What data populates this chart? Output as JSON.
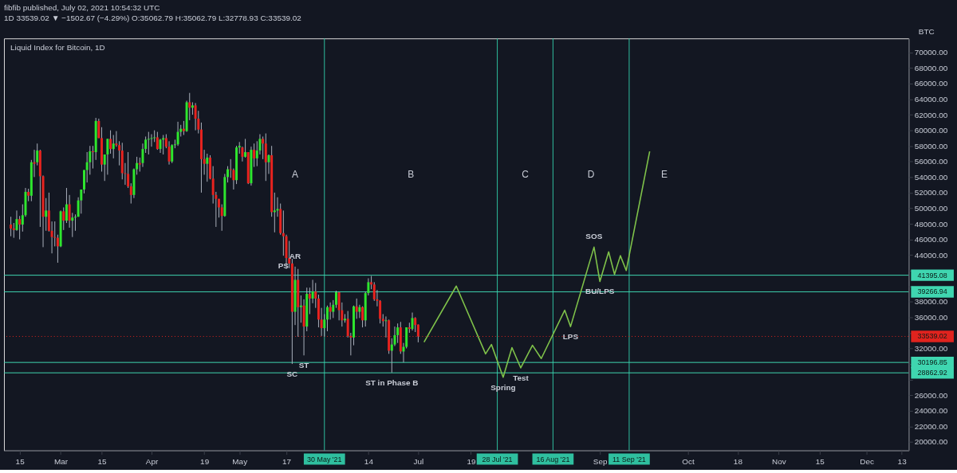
{
  "chart_data": {
    "type": "candlestick",
    "title": "fibfib published, July 02, 2021 10:54:32 UTC",
    "subtitle": "1D 33539.02 ▼ −1502.67 (−4.29%) O:35062.79 H:35062.79 L:32778.93 C:33539.02",
    "ylabel": "BTC",
    "annotations": [
      "Liquid Index for Bitcoin, 1D",
      "A",
      "B",
      "C",
      "D",
      "E",
      {
        "text": "PS",
        "x": "2021-05-16",
        "y": 43900
      },
      {
        "text": "AR",
        "x": "2021-05-20",
        "y": 42500
      },
      {
        "text": "SC",
        "x": "2021-05-19",
        "y": 30000
      },
      {
        "text": "ST",
        "x": "2021-05-23",
        "y": 31100
      },
      {
        "text": "ST in Phase B",
        "x": "2021-06-22",
        "y": 28900
      },
      {
        "text": "Spring",
        "x": "2021-07-30",
        "y": 28300
      },
      {
        "text": "Test",
        "x": "2021-08-05",
        "y": 29500
      },
      {
        "text": "LPS",
        "x": "2021-08-22",
        "y": 34800
      },
      {
        "text": "SOS",
        "x": "2021-08-30",
        "y": 45000
      },
      {
        "text": "BU/LPS",
        "x": "2021-09-01",
        "y": 40600
      }
    ],
    "x": [
      "2021-02-12",
      "2021-02-13",
      "2021-02-14",
      "2021-02-15",
      "2021-02-16",
      "2021-02-17",
      "2021-02-18",
      "2021-02-19",
      "2021-02-20",
      "2021-02-21",
      "2021-02-22",
      "2021-02-23",
      "2021-02-24",
      "2021-02-25",
      "2021-02-26",
      "2021-02-27",
      "2021-02-28",
      "2021-03-01",
      "2021-03-02",
      "2021-03-03",
      "2021-03-04",
      "2021-03-05",
      "2021-03-06",
      "2021-03-07",
      "2021-03-08",
      "2021-03-09",
      "2021-03-10",
      "2021-03-11",
      "2021-03-12",
      "2021-03-13",
      "2021-03-14",
      "2021-03-15",
      "2021-03-16",
      "2021-03-17",
      "2021-03-18",
      "2021-03-19",
      "2021-03-20",
      "2021-03-21",
      "2021-03-22",
      "2021-03-23",
      "2021-03-24",
      "2021-03-25",
      "2021-03-26",
      "2021-03-27",
      "2021-03-28",
      "2021-03-29",
      "2021-03-30",
      "2021-03-31",
      "2021-04-01",
      "2021-04-02",
      "2021-04-03",
      "2021-04-04",
      "2021-04-05",
      "2021-04-06",
      "2021-04-07",
      "2021-04-08",
      "2021-04-09",
      "2021-04-10",
      "2021-04-11",
      "2021-04-12",
      "2021-04-13",
      "2021-04-14",
      "2021-04-15",
      "2021-04-16",
      "2021-04-17",
      "2021-04-18",
      "2021-04-19",
      "2021-04-20",
      "2021-04-21",
      "2021-04-22",
      "2021-04-23",
      "2021-04-24",
      "2021-04-25",
      "2021-04-26",
      "2021-04-27",
      "2021-04-28",
      "2021-04-29",
      "2021-04-30",
      "2021-05-01",
      "2021-05-02",
      "2021-05-03",
      "2021-05-04",
      "2021-05-05",
      "2021-05-06",
      "2021-05-07",
      "2021-05-08",
      "2021-05-09",
      "2021-05-10",
      "2021-05-11",
      "2021-05-12",
      "2021-05-13",
      "2021-05-14",
      "2021-05-15",
      "2021-05-16",
      "2021-05-17",
      "2021-05-18",
      "2021-05-19",
      "2021-05-20",
      "2021-05-21",
      "2021-05-22",
      "2021-05-23",
      "2021-05-24",
      "2021-05-25",
      "2021-05-26",
      "2021-05-27",
      "2021-05-28",
      "2021-05-29",
      "2021-05-30",
      "2021-05-31",
      "2021-06-01",
      "2021-06-02",
      "2021-06-03",
      "2021-06-04",
      "2021-06-05",
      "2021-06-06",
      "2021-06-07",
      "2021-06-08",
      "2021-06-09",
      "2021-06-10",
      "2021-06-11",
      "2021-06-12",
      "2021-06-13",
      "2021-06-14",
      "2021-06-15",
      "2021-06-16",
      "2021-06-17",
      "2021-06-18",
      "2021-06-19",
      "2021-06-20",
      "2021-06-21",
      "2021-06-22",
      "2021-06-23",
      "2021-06-24",
      "2021-06-25",
      "2021-06-26",
      "2021-06-27",
      "2021-06-28",
      "2021-06-29",
      "2021-06-30",
      "2021-07-01"
    ],
    "ohlc": [
      [
        47900,
        48900,
        46400,
        47400
      ],
      [
        47400,
        48100,
        46200,
        47200
      ],
      [
        47200,
        49700,
        47100,
        48600
      ],
      [
        48600,
        49000,
        46000,
        47900
      ],
      [
        47900,
        50500,
        47000,
        49100
      ],
      [
        49100,
        52600,
        48900,
        52100
      ],
      [
        52100,
        52500,
        50900,
        51600
      ],
      [
        51600,
        56200,
        50900,
        55900
      ],
      [
        55900,
        57500,
        54000,
        55700
      ],
      [
        55900,
        58300,
        55500,
        57400
      ],
      [
        57400,
        57500,
        47600,
        54100
      ],
      [
        54100,
        54200,
        45000,
        48900
      ],
      [
        48900,
        51300,
        47100,
        49700
      ],
      [
        49700,
        52000,
        47000,
        47100
      ],
      [
        47100,
        48300,
        44200,
        46300
      ],
      [
        46300,
        48300,
        45100,
        46200
      ],
      [
        46200,
        46600,
        43000,
        45100
      ],
      [
        45100,
        49700,
        45000,
        49600
      ],
      [
        49600,
        50100,
        47200,
        48400
      ],
      [
        48400,
        52600,
        48100,
        50500
      ],
      [
        50500,
        51700,
        47500,
        48400
      ],
      [
        48400,
        49400,
        46300,
        48800
      ],
      [
        48800,
        49200,
        47100,
        48900
      ],
      [
        48900,
        51400,
        48900,
        51000
      ],
      [
        51000,
        52400,
        49300,
        52400
      ],
      [
        52400,
        54900,
        51900,
        54900
      ],
      [
        54900,
        57200,
        53300,
        55900
      ],
      [
        55900,
        58000,
        54300,
        57300
      ],
      [
        57300,
        58000,
        55100,
        57200
      ],
      [
        57200,
        61600,
        56200,
        61200
      ],
      [
        61200,
        61500,
        59000,
        59000
      ],
      [
        59000,
        60400,
        54700,
        55600
      ],
      [
        55600,
        56900,
        53500,
        56900
      ],
      [
        56900,
        58900,
        54300,
        58900
      ],
      [
        58900,
        60000,
        57000,
        57600
      ],
      [
        57600,
        59400,
        56400,
        58300
      ],
      [
        58300,
        59900,
        57900,
        58100
      ],
      [
        58100,
        58600,
        55500,
        57400
      ],
      [
        57400,
        58400,
        53700,
        54500
      ],
      [
        54500,
        55800,
        53000,
        54400
      ],
      [
        54400,
        57200,
        52600,
        52800
      ],
      [
        52800,
        53200,
        50600,
        51700
      ],
      [
        51700,
        55100,
        51300,
        55000
      ],
      [
        55000,
        56600,
        54300,
        55800
      ],
      [
        55800,
        56500,
        54700,
        55600
      ],
      [
        55800,
        58300,
        55300,
        57600
      ],
      [
        57600,
        59200,
        57100,
        58800
      ],
      [
        58800,
        59800,
        56900,
        58900
      ],
      [
        58900,
        59500,
        57900,
        59000
      ],
      [
        59000,
        60000,
        58500,
        59100
      ],
      [
        59100,
        59800,
        57500,
        57600
      ],
      [
        57600,
        58900,
        57100,
        58800
      ],
      [
        58800,
        59400,
        56900,
        59000
      ],
      [
        59000,
        59500,
        57700,
        57900
      ],
      [
        57900,
        58600,
        55600,
        56000
      ],
      [
        56000,
        58200,
        55800,
        58100
      ],
      [
        58100,
        58800,
        57700,
        58200
      ],
      [
        58200,
        61100,
        58000,
        59800
      ],
      [
        59800,
        60700,
        59200,
        60200
      ],
      [
        60200,
        61200,
        59400,
        59900
      ],
      [
        59900,
        63800,
        59800,
        63600
      ],
      [
        63600,
        64800,
        61300,
        62900
      ],
      [
        62900,
        63600,
        62000,
        63200
      ],
      [
        63200,
        63500,
        60000,
        61500
      ],
      [
        61500,
        62500,
        59600,
        60100
      ],
      [
        60100,
        61000,
        52000,
        56300
      ],
      [
        56300,
        57500,
        54300,
        55700
      ],
      [
        55700,
        57000,
        53400,
        56500
      ],
      [
        56500,
        56800,
        53700,
        53800
      ],
      [
        53800,
        55400,
        50600,
        51700
      ],
      [
        51700,
        52100,
        47600,
        51200
      ],
      [
        51200,
        51200,
        48800,
        50100
      ],
      [
        50100,
        50500,
        47100,
        49000
      ],
      [
        49000,
        54400,
        48900,
        54000
      ],
      [
        54000,
        55400,
        53300,
        55000
      ],
      [
        55000,
        56300,
        53900,
        54900
      ],
      [
        54900,
        55100,
        52400,
        53600
      ],
      [
        53600,
        58000,
        53100,
        57800
      ],
      [
        57800,
        58500,
        57000,
        58000
      ],
      [
        57800,
        57900,
        56000,
        56600
      ],
      [
        56600,
        58900,
        56500,
        57200
      ],
      [
        57200,
        57200,
        53100,
        53200
      ],
      [
        53200,
        57900,
        52900,
        57500
      ],
      [
        57500,
        58300,
        55300,
        56400
      ],
      [
        56400,
        58600,
        55400,
        57400
      ],
      [
        57400,
        59500,
        56900,
        58900
      ],
      [
        58900,
        59200,
        56300,
        58300
      ],
      [
        58300,
        59600,
        53500,
        55900
      ],
      [
        55900,
        56900,
        54400,
        56800
      ],
      [
        56800,
        58000,
        48900,
        49500
      ],
      [
        49500,
        52000,
        46900,
        49700
      ],
      [
        49700,
        51400,
        48900,
        49900
      ],
      [
        49900,
        50600,
        46600,
        46800
      ],
      [
        46800,
        49700,
        43900,
        46400
      ],
      [
        46400,
        46600,
        42200,
        43600
      ],
      [
        43600,
        45800,
        42300,
        42900
      ],
      [
        42900,
        43500,
        30000,
        36700
      ],
      [
        36700,
        42500,
        35000,
        40800
      ],
      [
        40800,
        42200,
        33500,
        37300
      ],
      [
        37300,
        38800,
        35300,
        37500
      ],
      [
        37500,
        38300,
        31100,
        34800
      ],
      [
        34800,
        39800,
        34200,
        39000
      ],
      [
        39000,
        39800,
        36400,
        38400
      ],
      [
        38400,
        40800,
        37800,
        39300
      ],
      [
        39300,
        40400,
        37200,
        38400
      ],
      [
        38400,
        38900,
        34700,
        35700
      ],
      [
        35700,
        37200,
        33600,
        34600
      ],
      [
        34600,
        36400,
        33500,
        35700
      ],
      [
        35700,
        37500,
        34200,
        37300
      ],
      [
        37300,
        37900,
        35700,
        36700
      ],
      [
        36700,
        38200,
        35900,
        37600
      ],
      [
        37600,
        39400,
        37200,
        39200
      ],
      [
        39200,
        39200,
        35600,
        36900
      ],
      [
        36900,
        37900,
        34800,
        35600
      ],
      [
        35600,
        36400,
        35300,
        35800
      ],
      [
        35800,
        36800,
        33400,
        33600
      ],
      [
        33600,
        34000,
        31100,
        33400
      ],
      [
        33400,
        37500,
        32400,
        37400
      ],
      [
        37400,
        38400,
        35800,
        36700
      ],
      [
        36700,
        37600,
        35900,
        37300
      ],
      [
        37300,
        37400,
        34700,
        35600
      ],
      [
        35600,
        39300,
        34800,
        39100
      ],
      [
        39100,
        41000,
        38800,
        40500
      ],
      [
        40500,
        41300,
        39600,
        40200
      ],
      [
        40200,
        40500,
        38100,
        38300
      ],
      [
        38300,
        39500,
        37400,
        38100
      ],
      [
        38100,
        38200,
        35200,
        35800
      ],
      [
        35800,
        36400,
        34800,
        35500
      ],
      [
        35500,
        36100,
        33400,
        35600
      ],
      [
        35600,
        35700,
        31300,
        31700
      ],
      [
        31700,
        33300,
        28900,
        32500
      ],
      [
        32500,
        34800,
        32300,
        33700
      ],
      [
        33700,
        35200,
        32700,
        34700
      ],
      [
        34700,
        35400,
        31300,
        31600
      ],
      [
        31600,
        32700,
        30200,
        32200
      ],
      [
        32200,
        34700,
        32000,
        34700
      ],
      [
        34700,
        35300,
        34000,
        34500
      ],
      [
        34500,
        36600,
        34300,
        35900
      ],
      [
        35900,
        36000,
        34100,
        35000
      ],
      [
        35062.79,
        35062.79,
        32778.93,
        33539.02
      ]
    ],
    "series": [
      {
        "type": "line",
        "color": "#7fc24a",
        "x": [
          "2021-07-03",
          "2021-07-14",
          "2021-07-24",
          "2021-07-26",
          "2021-07-30",
          "2021-08-02",
          "2021-08-05",
          "2021-08-09",
          "2021-08-12",
          "2021-08-20",
          "2021-08-22",
          "2021-08-30",
          "2021-09-01",
          "2021-09-04",
          "2021-09-06",
          "2021-09-08",
          "2021-09-10",
          "2021-09-18"
        ],
        "values": [
          32800,
          40000,
          31300,
          32500,
          28300,
          32100,
          29500,
          32400,
          30700,
          36900,
          34800,
          45000,
          40600,
          44400,
          41500,
          43900,
          42000,
          57300
        ]
      }
    ],
    "ref_lines": [
      {
        "axis": "x",
        "value": "2021-05-30",
        "label": "30 May '21",
        "color": "#2fbf9f"
      },
      {
        "axis": "x",
        "value": "2021-07-28",
        "label": "28 Jul '21",
        "color": "#2fbf9f"
      },
      {
        "axis": "x",
        "value": "2021-08-16",
        "label": "16 Aug '21",
        "color": "#2fbf9f"
      },
      {
        "axis": "x",
        "value": "2021-09-11",
        "label": "11 Sep '21",
        "color": "#2fbf9f"
      },
      {
        "axis": "y",
        "value": 41395.08,
        "label": "41395.08",
        "color": "#3fd6b0"
      },
      {
        "axis": "y",
        "value": 39266.94,
        "label": "39266.94",
        "color": "#3fd6b0"
      },
      {
        "axis": "y",
        "value": 30196.85,
        "label": "30196.85",
        "color": "#3fd6b0"
      },
      {
        "axis": "y",
        "value": 28862.92,
        "label": "28862.92",
        "color": "#3fd6b0"
      },
      {
        "axis": "y",
        "value": 33539.02,
        "label": "33539.02",
        "color": "#e0231e",
        "line_style": "dotted"
      }
    ],
    "xlim": [
      "2021-02-11",
      "2021-12-14"
    ],
    "xticks": [
      {
        "value": "2021-02-15",
        "label": "15"
      },
      {
        "value": "2021-03-01",
        "label": "Mar"
      },
      {
        "value": "2021-03-15",
        "label": "15"
      },
      {
        "value": "2021-04-01",
        "label": "Apr"
      },
      {
        "value": "2021-04-19",
        "label": "19"
      },
      {
        "value": "2021-05-01",
        "label": "May"
      },
      {
        "value": "2021-05-17",
        "label": "17"
      },
      {
        "value": "2021-06-14",
        "label": "14"
      },
      {
        "value": "2021-07-01",
        "label": "Jul"
      },
      {
        "value": "2021-07-19",
        "label": "19"
      },
      {
        "value": "2021-09-01",
        "label": "Sep"
      },
      {
        "value": "2021-10-01",
        "label": "Oct"
      },
      {
        "value": "2021-10-18",
        "label": "18"
      },
      {
        "value": "2021-11-01",
        "label": "Nov"
      },
      {
        "value": "2021-11-15",
        "label": "15"
      },
      {
        "value": "2021-12-01",
        "label": "Dec"
      },
      {
        "value": "2021-12-13",
        "label": "13"
      }
    ],
    "ylim": [
      18900,
      71800
    ],
    "yticks": [
      {
        "value": 20000,
        "label": "20000.00"
      },
      {
        "value": 22000,
        "label": "22000.00"
      },
      {
        "value": 24000,
        "label": "24000.00"
      },
      {
        "value": 26000,
        "label": "26000.00"
      },
      {
        "value": 28000,
        "label": null
      },
      {
        "value": 30000,
        "label": null
      },
      {
        "value": 32000,
        "label": "32000.00"
      },
      {
        "value": 34000,
        "label": null
      },
      {
        "value": 36000,
        "label": "36000.00"
      },
      {
        "value": 38000,
        "label": "38000.00"
      },
      {
        "value": 40000,
        "label": null
      },
      {
        "value": 42000,
        "label": null
      },
      {
        "value": 44000,
        "label": "44000.00"
      },
      {
        "value": 46000,
        "label": "46000.00"
      },
      {
        "value": 48000,
        "label": "48000.00"
      },
      {
        "value": 50000,
        "label": "50000.00"
      },
      {
        "value": 52000,
        "label": "52000.00"
      },
      {
        "value": 54000,
        "label": "54000.00"
      },
      {
        "value": 56000,
        "label": "56000.00"
      },
      {
        "value": 58000,
        "label": "58000.00"
      },
      {
        "value": 60000,
        "label": "60000.00"
      },
      {
        "value": 62000,
        "label": "62000.00"
      },
      {
        "value": 64000,
        "label": "64000.00"
      },
      {
        "value": 66000,
        "label": "66000.00"
      },
      {
        "value": 68000,
        "label": "68000.00"
      },
      {
        "value": 70000,
        "label": "70000.00"
      }
    ],
    "marker": "none"
  }
}
